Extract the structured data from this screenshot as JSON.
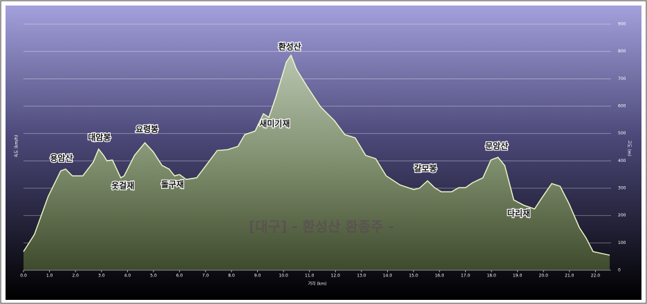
{
  "chart_data": {
    "type": "area",
    "x_label": "거리 (km)",
    "y_label": "속도 (km/h)",
    "y2_label": "고도 (m)",
    "watermark": "[대구] - 환성산 환종주 -",
    "x": [
      0,
      0.42,
      0.95,
      1.43,
      1.62,
      1.88,
      2.28,
      2.68,
      2.89,
      3.08,
      3.21,
      3.42,
      3.74,
      3.87,
      4.27,
      4.67,
      4.99,
      5.33,
      5.6,
      5.81,
      6.0,
      6.26,
      6.66,
      7.06,
      7.45,
      7.85,
      8.25,
      8.51,
      8.91,
      9.23,
      9.44,
      9.71,
      10.11,
      10.29,
      10.5,
      10.9,
      11.43,
      11.96,
      12.36,
      12.76,
      13.16,
      13.55,
      13.95,
      14.48,
      15.01,
      15.23,
      15.54,
      15.81,
      16.07,
      16.47,
      16.74,
      17.0,
      17.27,
      17.67,
      17.98,
      18.25,
      18.51,
      18.86,
      19.26,
      19.66,
      19.92,
      20.32,
      20.64,
      20.98,
      21.38,
      21.64,
      21.91,
      22.55
    ],
    "series": [
      {
        "color": "#eef7c8",
        "values": [
          68,
          131,
          270,
          363,
          370,
          345,
          345,
          395,
          443,
          420,
          400,
          403,
          338,
          345,
          420,
          466,
          433,
          383,
          370,
          345,
          350,
          332,
          338,
          388,
          438,
          441,
          453,
          496,
          509,
          572,
          559,
          635,
          761,
          786,
          735,
          673,
          597,
          547,
          496,
          484,
          420,
          408,
          345,
          312,
          295,
          300,
          327,
          302,
          287,
          287,
          302,
          302,
          320,
          338,
          403,
          413,
          383,
          257,
          237,
          224,
          262,
          317,
          307,
          244,
          156,
          118,
          68,
          55
        ]
      }
    ],
    "xlim": [
      0,
      22.6
    ],
    "ylim": [
      0,
      900
    ],
    "xticks": [
      {
        "value": 0,
        "label": "0.0"
      },
      {
        "value": 1,
        "label": "1.0"
      },
      {
        "value": 2,
        "label": "2.0"
      },
      {
        "value": 3,
        "label": "3.0"
      },
      {
        "value": 4,
        "label": "4.0"
      },
      {
        "value": 5,
        "label": "5.0"
      },
      {
        "value": 6,
        "label": "6.0"
      },
      {
        "value": 7,
        "label": "7.0"
      },
      {
        "value": 8,
        "label": "8.0"
      },
      {
        "value": 9,
        "label": "9.0"
      },
      {
        "value": 10,
        "label": "10.0"
      },
      {
        "value": 11,
        "label": "11.0"
      },
      {
        "value": 12,
        "label": "12.0"
      },
      {
        "value": 13,
        "label": "13.0"
      },
      {
        "value": 14,
        "label": "14.0"
      },
      {
        "value": 15,
        "label": "15.0"
      },
      {
        "value": 16,
        "label": "16.0"
      },
      {
        "value": 17,
        "label": "17.0"
      },
      {
        "value": 18,
        "label": "18.0"
      },
      {
        "value": 19,
        "label": "19.0"
      },
      {
        "value": 20,
        "label": "20.0"
      },
      {
        "value": 21,
        "label": "21.0"
      },
      {
        "value": 22,
        "label": "22.0"
      }
    ],
    "yticks": [
      0,
      100,
      200,
      300,
      400,
      500,
      600,
      700,
      800,
      900
    ],
    "grid": true,
    "annotations": [
      {
        "text": "용암산",
        "x": 1.46,
        "y": 408
      },
      {
        "text": "대암봉",
        "x": 2.92,
        "y": 484
      },
      {
        "text": "옷걸재",
        "x": 3.82,
        "y": 307
      },
      {
        "text": "요령봉",
        "x": 4.75,
        "y": 514
      },
      {
        "text": "돌구재",
        "x": 5.73,
        "y": 312
      },
      {
        "text": "환성산",
        "x": 10.24,
        "y": 816
      },
      {
        "text": "새미기재",
        "x": 9.66,
        "y": 534
      },
      {
        "text": "갈모봉",
        "x": 15.46,
        "y": 370
      },
      {
        "text": "문암산",
        "x": 18.2,
        "y": 453
      },
      {
        "text": "다리재",
        "x": 19.05,
        "y": 207
      }
    ]
  }
}
